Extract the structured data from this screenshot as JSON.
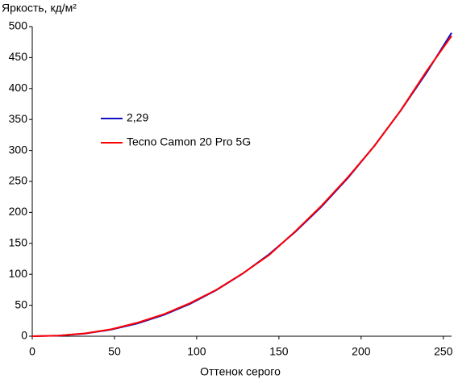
{
  "chart_data": {
    "type": "line",
    "ylabel": "Яркость, кд/м²",
    "xlabel": "Оттенок серого",
    "x": [
      0,
      16,
      32,
      48,
      64,
      80,
      96,
      112,
      128,
      144,
      160,
      176,
      192,
      208,
      224,
      240,
      255
    ],
    "series": [
      {
        "name": "2,29",
        "color": "#1010c0",
        "values": [
          0,
          0.9,
          4.2,
          10.7,
          20.7,
          34.4,
          52.3,
          74.5,
          101.1,
          132.3,
          168.6,
          209.6,
          255.8,
          307.3,
          364.2,
          426.5,
          490
        ]
      },
      {
        "name": "Tecno Camon 20 Pro 5G",
        "color": "#ff0000",
        "values": [
          0,
          1.0,
          4.6,
          11.2,
          21.8,
          35.5,
          53.5,
          75.0,
          101.5,
          131.0,
          169.5,
          211.0,
          257.0,
          307.0,
          364.5,
          429.0,
          485
        ]
      }
    ],
    "xlim": [
      0,
      255
    ],
    "xticks": [
      0,
      50,
      100,
      150,
      200,
      250
    ],
    "ylim": [
      0,
      500
    ],
    "yticks": [
      0,
      50,
      100,
      150,
      200,
      250,
      300,
      350,
      400,
      450,
      500
    ],
    "grid": false
  }
}
